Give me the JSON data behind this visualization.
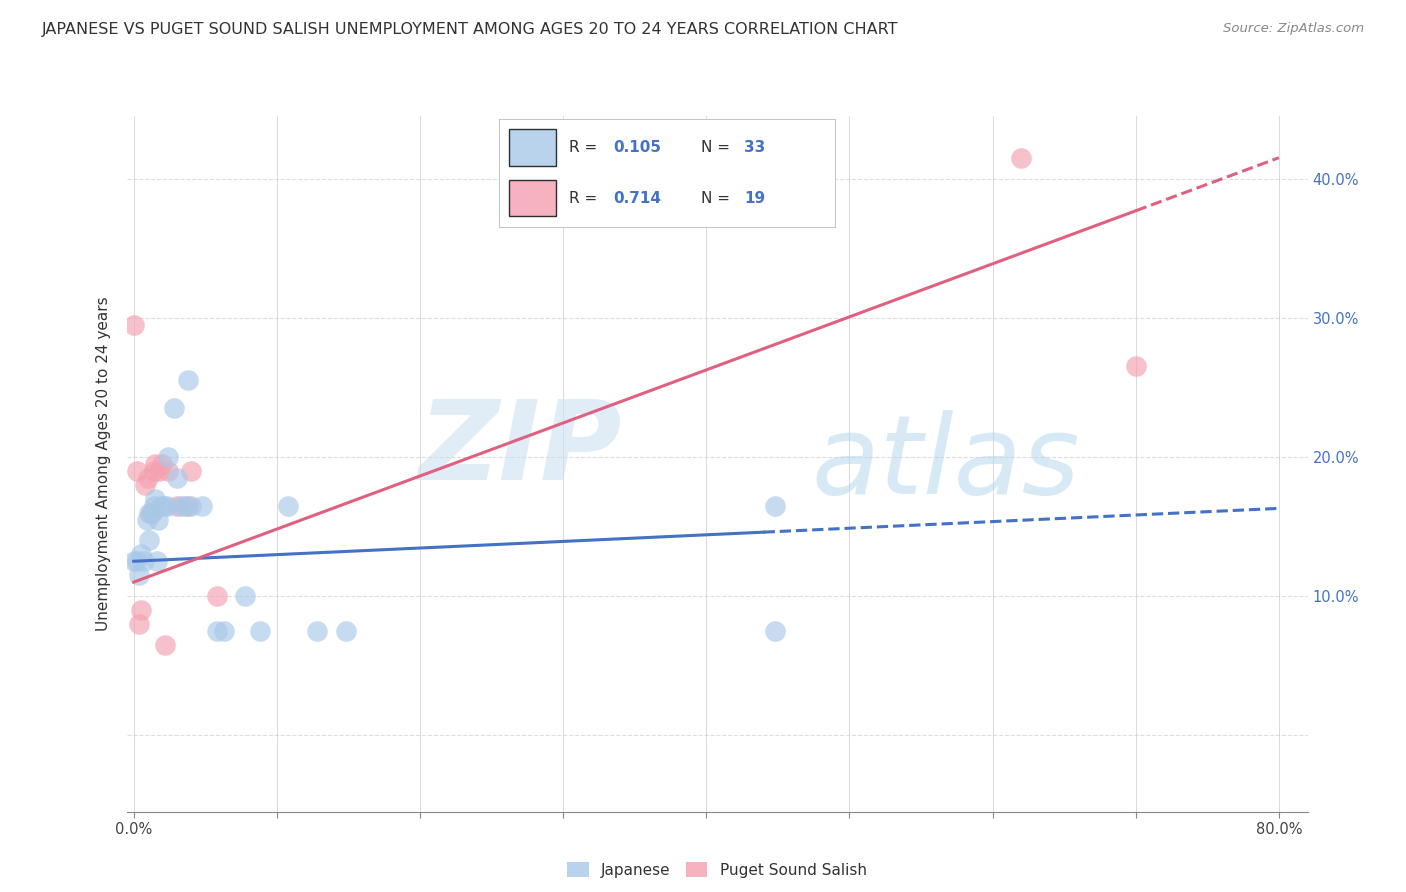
{
  "title": "JAPANESE VS PUGET SOUND SALISH UNEMPLOYMENT AMONG AGES 20 TO 24 YEARS CORRELATION CHART",
  "source": "Source: ZipAtlas.com",
  "ylabel": "Unemployment Among Ages 20 to 24 years",
  "xlabel_ticks": [
    0.0,
    0.1,
    0.2,
    0.3,
    0.4,
    0.5,
    0.6,
    0.7,
    0.8
  ],
  "xlabel_labels": [
    "0.0%",
    "",
    "",
    "",
    "",
    "",
    "",
    "",
    "80.0%"
  ],
  "ylabel_ticks": [
    0.0,
    0.1,
    0.2,
    0.3,
    0.4
  ],
  "ylabel_labels": [
    "",
    "10.0%",
    "20.0%",
    "30.0%",
    "40.0%"
  ],
  "xlim": [
    -0.005,
    0.82
  ],
  "ylim": [
    -0.055,
    0.445
  ],
  "background_color": "#ffffff",
  "grid_color": "#dddddd",
  "watermark_zip": "ZIP",
  "watermark_atlas": "atlas",
  "legend_r1": "R = 0.105",
  "legend_n1": "N = 33",
  "legend_r2": "R = 0.714",
  "legend_n2": "N = 19",
  "japanese_color": "#a8c8e8",
  "puget_color": "#f4a0b0",
  "japanese_scatter": [
    [
      0.0,
      0.125
    ],
    [
      0.002,
      0.125
    ],
    [
      0.004,
      0.115
    ],
    [
      0.005,
      0.13
    ],
    [
      0.007,
      0.125
    ],
    [
      0.009,
      0.155
    ],
    [
      0.011,
      0.14
    ],
    [
      0.011,
      0.16
    ],
    [
      0.013,
      0.16
    ],
    [
      0.014,
      0.165
    ],
    [
      0.015,
      0.17
    ],
    [
      0.016,
      0.125
    ],
    [
      0.017,
      0.155
    ],
    [
      0.019,
      0.165
    ],
    [
      0.021,
      0.165
    ],
    [
      0.023,
      0.165
    ],
    [
      0.024,
      0.2
    ],
    [
      0.028,
      0.235
    ],
    [
      0.03,
      0.185
    ],
    [
      0.033,
      0.165
    ],
    [
      0.036,
      0.165
    ],
    [
      0.038,
      0.255
    ],
    [
      0.04,
      0.165
    ],
    [
      0.048,
      0.165
    ],
    [
      0.058,
      0.075
    ],
    [
      0.063,
      0.075
    ],
    [
      0.078,
      0.1
    ],
    [
      0.088,
      0.075
    ],
    [
      0.108,
      0.165
    ],
    [
      0.128,
      0.075
    ],
    [
      0.148,
      0.075
    ],
    [
      0.448,
      0.165
    ],
    [
      0.448,
      0.075
    ]
  ],
  "puget_scatter": [
    [
      0.0,
      0.295
    ],
    [
      0.004,
      0.08
    ],
    [
      0.005,
      0.09
    ],
    [
      0.008,
      0.18
    ],
    [
      0.01,
      0.185
    ],
    [
      0.012,
      0.16
    ],
    [
      0.014,
      0.19
    ],
    [
      0.015,
      0.195
    ],
    [
      0.018,
      0.19
    ],
    [
      0.02,
      0.195
    ],
    [
      0.022,
      0.065
    ],
    [
      0.024,
      0.19
    ],
    [
      0.03,
      0.165
    ],
    [
      0.038,
      0.165
    ],
    [
      0.04,
      0.19
    ],
    [
      0.058,
      0.1
    ],
    [
      0.62,
      0.415
    ],
    [
      0.7,
      0.265
    ],
    [
      0.002,
      0.19
    ]
  ],
  "japanese_line": {
    "x0": 0.0,
    "x1": 0.8,
    "y0": 0.125,
    "y1": 0.163,
    "solid_end": 0.44
  },
  "puget_line": {
    "x0": 0.0,
    "x1": 0.8,
    "y0": 0.11,
    "y1": 0.415,
    "solid_end": 0.7
  }
}
